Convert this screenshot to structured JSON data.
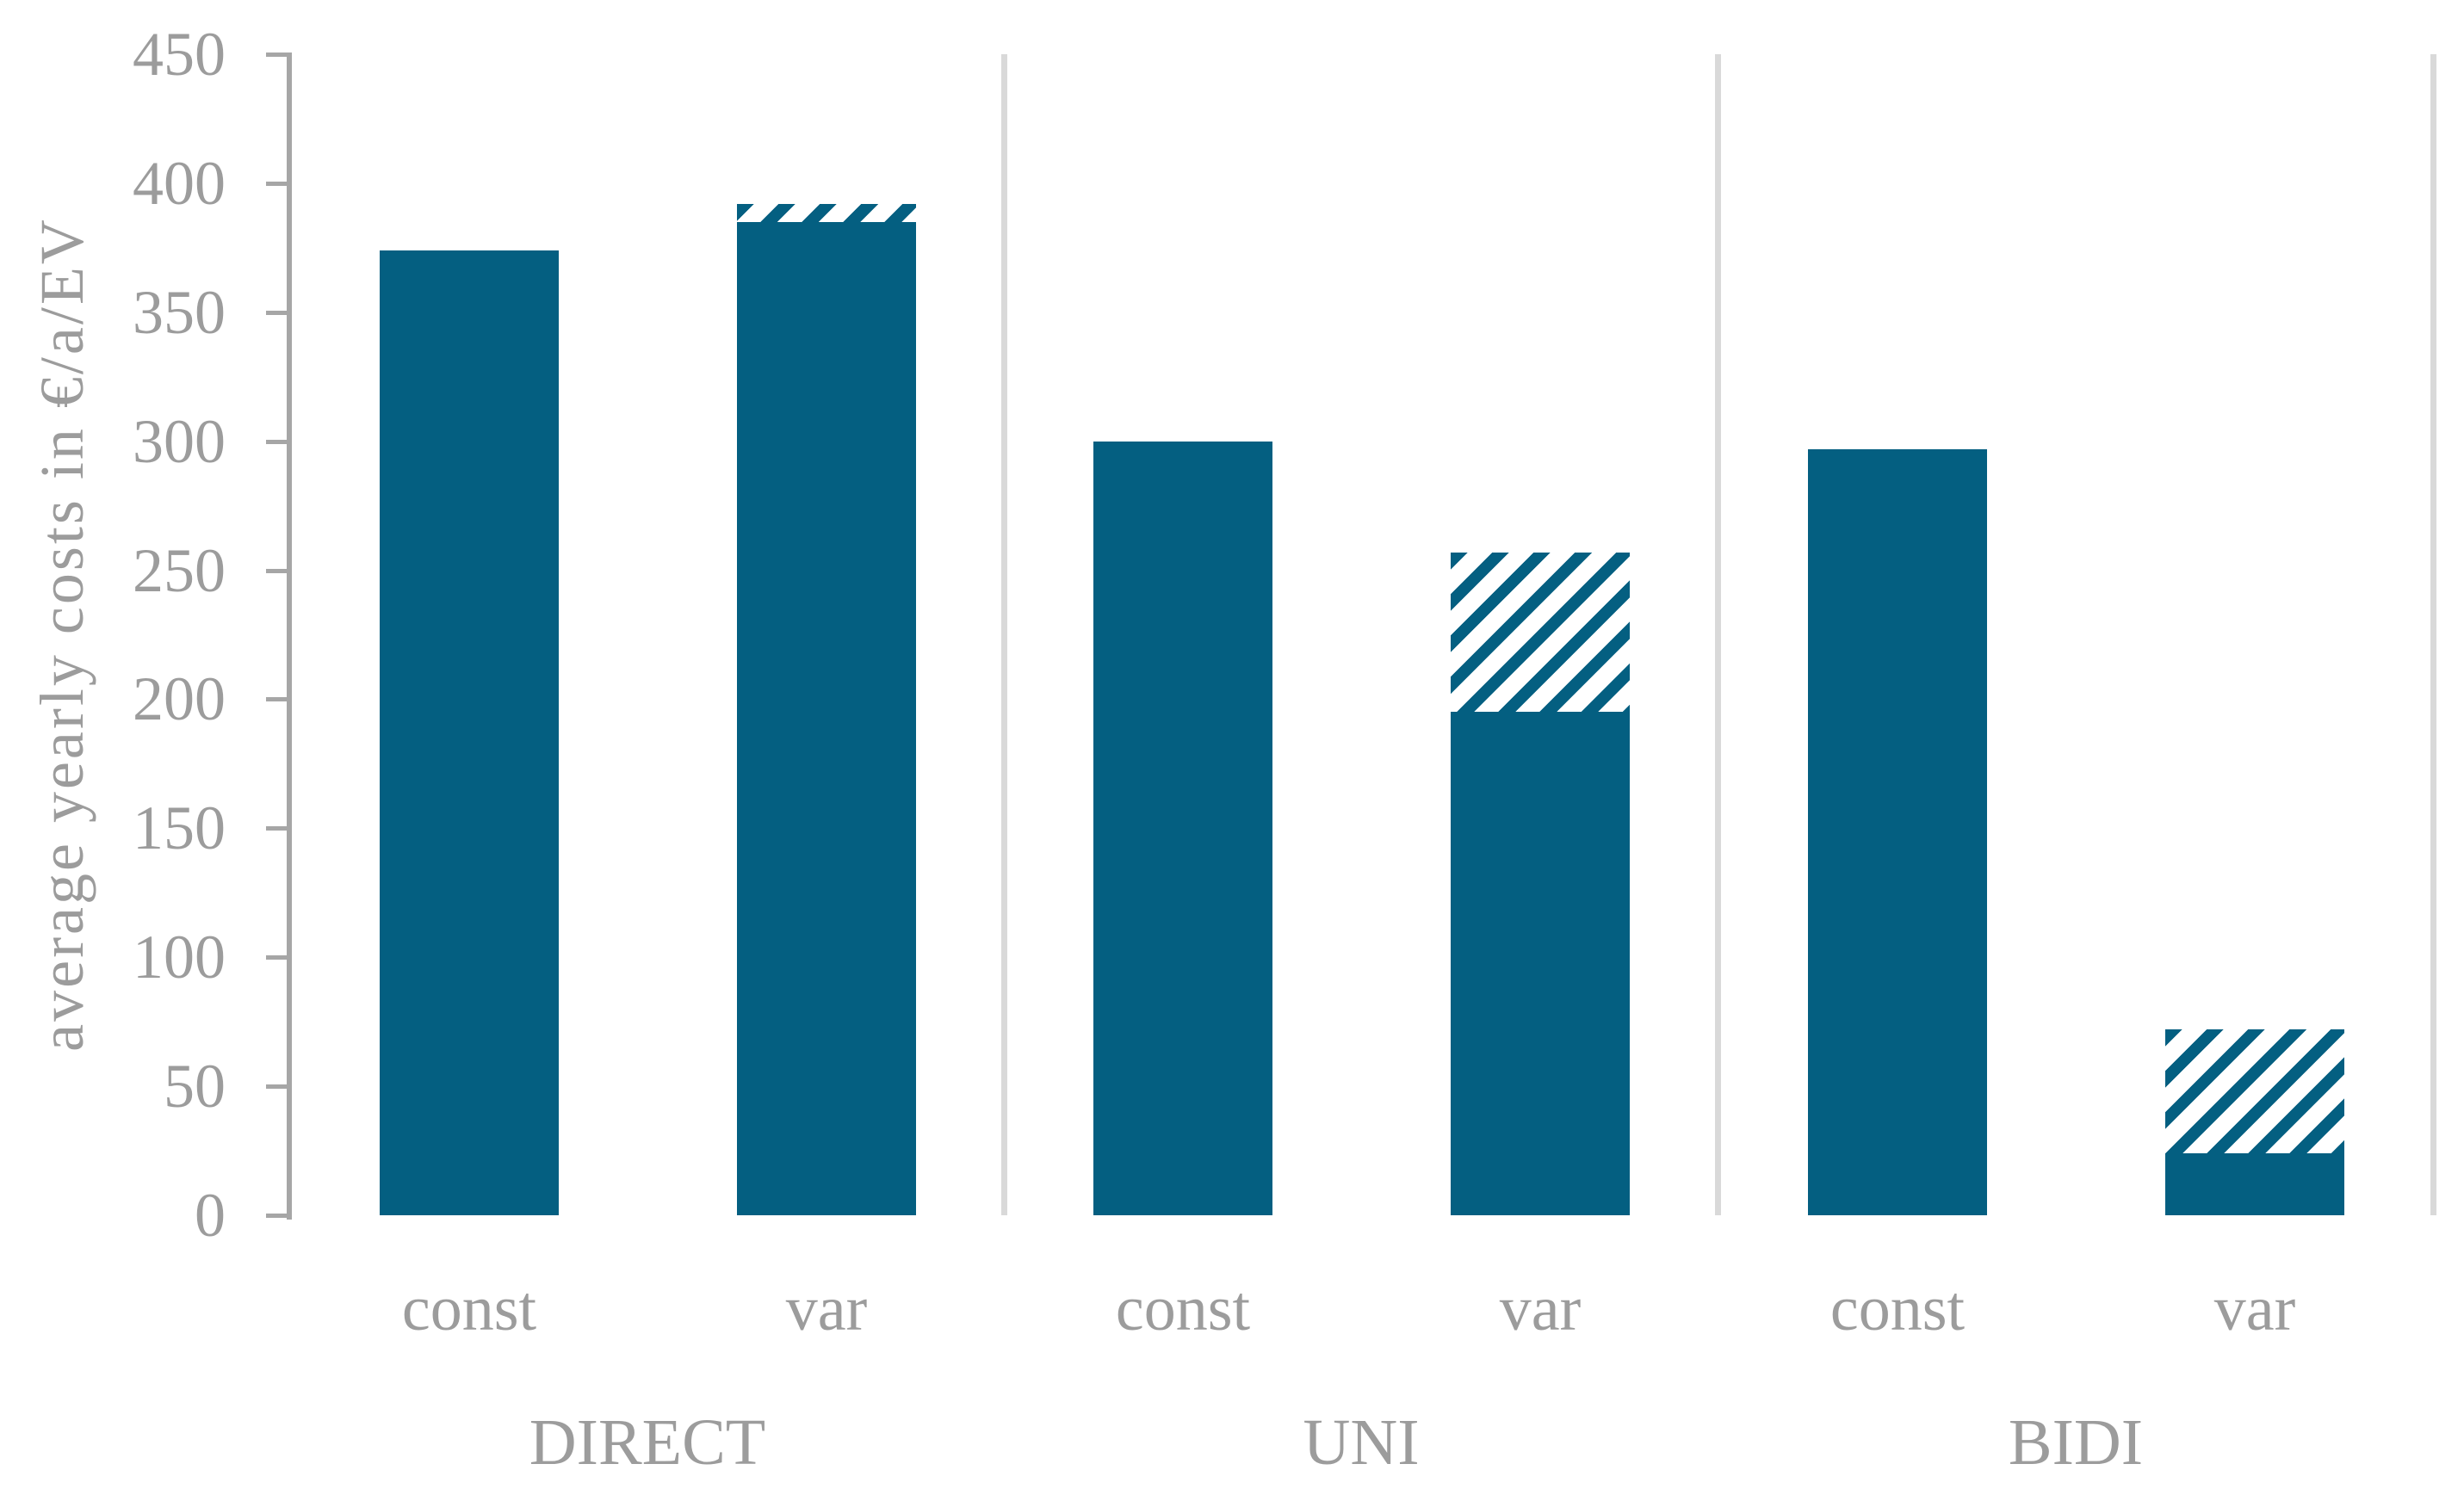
{
  "chart_data": {
    "type": "bar",
    "title": "",
    "xlabel": "",
    "ylabel": "average yearly costs in €/a/EV",
    "ylim": [
      0,
      450
    ],
    "yticks": [
      0,
      50,
      100,
      150,
      200,
      250,
      300,
      350,
      400,
      450
    ],
    "grid": "off",
    "legend_position": "none",
    "bar_style_note": "each group has a plain 'const' bar and a 'var' bar; 'var' bars are stacked: solid base segment plus diagonally hatched top segment",
    "groups": [
      {
        "label": "DIRECT",
        "bars": [
          {
            "label": "const",
            "solid": 374,
            "hatched": 0,
            "total": 374
          },
          {
            "label": "var",
            "solid": 385,
            "hatched": 7,
            "total": 392
          }
        ]
      },
      {
        "label": "UNI",
        "bars": [
          {
            "label": "const",
            "solid": 300,
            "hatched": 0,
            "total": 300
          },
          {
            "label": "var",
            "solid": 195,
            "hatched": 62,
            "total": 257
          }
        ]
      },
      {
        "label": "BIDI",
        "bars": [
          {
            "label": "const",
            "solid": 297,
            "hatched": 0,
            "total": 297
          },
          {
            "label": "var",
            "solid": 24,
            "hatched": 48,
            "total": 72
          }
        ]
      }
    ],
    "colors": {
      "bar": "#045f81",
      "axis": "#a6a6a6",
      "text": "#9c9c9c",
      "separator": "#d9d9d9",
      "background": "#ffffff"
    }
  }
}
